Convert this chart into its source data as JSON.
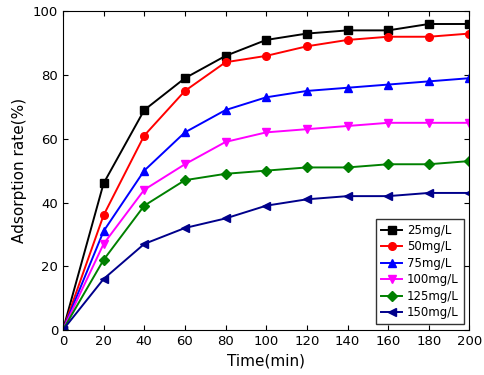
{
  "title": "",
  "xlabel": "Time(min)",
  "ylabel": "Adsorption rate(%)",
  "xlim": [
    0,
    200
  ],
  "ylim": [
    0,
    100
  ],
  "xticks": [
    0,
    20,
    40,
    60,
    80,
    100,
    120,
    140,
    160,
    180,
    200
  ],
  "yticks": [
    0,
    20,
    40,
    60,
    80,
    100
  ],
  "series": [
    {
      "label": "25mg/L",
      "color": "black",
      "marker": "s",
      "x": [
        0,
        20,
        40,
        60,
        80,
        100,
        120,
        140,
        160,
        180,
        200
      ],
      "y": [
        0,
        46,
        69,
        79,
        86,
        91,
        93,
        94,
        94,
        96,
        96
      ]
    },
    {
      "label": "50mg/L",
      "color": "red",
      "marker": "o",
      "x": [
        0,
        20,
        40,
        60,
        80,
        100,
        120,
        140,
        160,
        180,
        200
      ],
      "y": [
        0,
        36,
        61,
        75,
        84,
        86,
        89,
        91,
        92,
        92,
        93
      ]
    },
    {
      "label": "75mg/L",
      "color": "blue",
      "marker": "^",
      "x": [
        0,
        20,
        40,
        60,
        80,
        100,
        120,
        140,
        160,
        180,
        200
      ],
      "y": [
        0,
        31,
        50,
        62,
        69,
        73,
        75,
        76,
        77,
        78,
        79
      ]
    },
    {
      "label": "100mg/L",
      "color": "#FF00FF",
      "marker": "v",
      "x": [
        0,
        20,
        40,
        60,
        80,
        100,
        120,
        140,
        160,
        180,
        200
      ],
      "y": [
        0,
        27,
        44,
        52,
        59,
        62,
        63,
        64,
        65,
        65,
        65
      ]
    },
    {
      "label": "125mg/L",
      "color": "#008000",
      "marker": "D",
      "x": [
        0,
        20,
        40,
        60,
        80,
        100,
        120,
        140,
        160,
        180,
        200
      ],
      "y": [
        0,
        22,
        39,
        47,
        49,
        50,
        51,
        51,
        52,
        52,
        53
      ]
    },
    {
      "label": "150mg/L",
      "color": "#00008B",
      "marker": "<",
      "x": [
        0,
        20,
        40,
        60,
        80,
        100,
        120,
        140,
        160,
        180,
        200
      ],
      "y": [
        0,
        16,
        27,
        32,
        35,
        39,
        41,
        42,
        42,
        43,
        43
      ]
    }
  ],
  "legend_loc": "lower right",
  "legend_fontsize": 8.5,
  "axis_fontsize": 11,
  "tick_fontsize": 9.5,
  "linewidth": 1.4,
  "markersize": 5.5,
  "background_color": "white"
}
